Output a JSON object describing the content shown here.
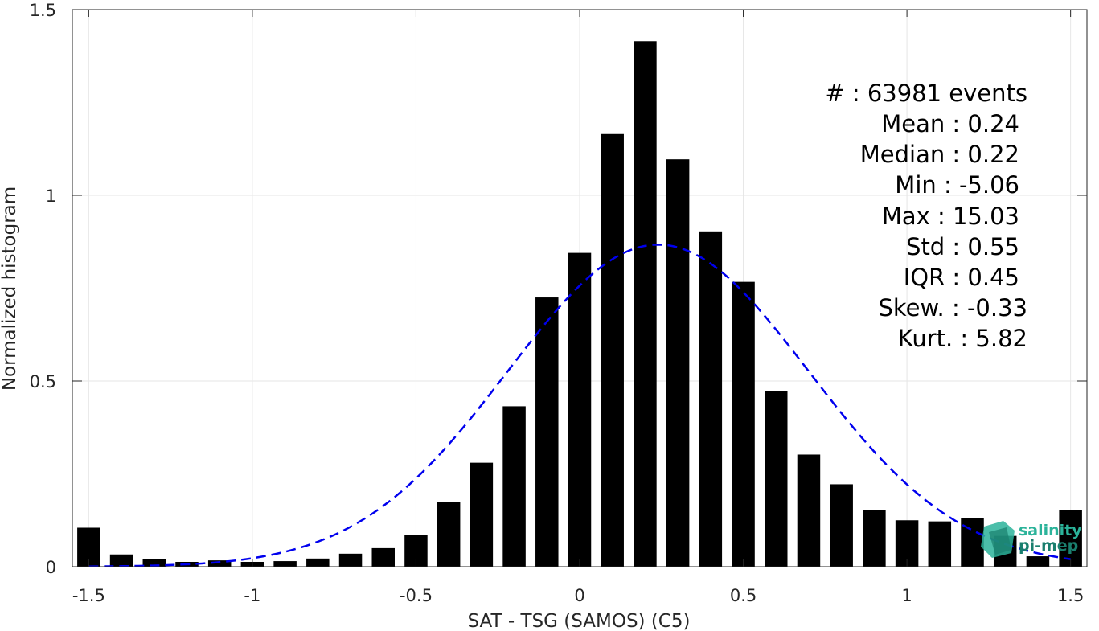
{
  "chart_data": {
    "type": "bar",
    "xlabel": "SAT - TSG (SAMOS) (C5)",
    "ylabel": "Normalized histogram",
    "xlim": [
      -1.55,
      1.55
    ],
    "ylim": [
      0,
      1.5
    ],
    "xticks": [
      -1.5,
      -1,
      -0.5,
      0,
      0.5,
      1,
      1.5
    ],
    "xtick_labels": [
      "-1.5",
      "-1",
      "-0.5",
      "0",
      "0.5",
      "1",
      "1.5"
    ],
    "yticks": [
      0,
      0.5,
      1,
      1.5
    ],
    "ytick_labels": [
      "0",
      "0.5",
      "1",
      "1.5"
    ],
    "grid": true,
    "bar_width": 0.07,
    "x": [
      -1.5,
      -1.4,
      -1.3,
      -1.2,
      -1.1,
      -1.0,
      -0.9,
      -0.8,
      -0.7,
      -0.6,
      -0.5,
      -0.4,
      -0.3,
      -0.2,
      -0.1,
      0.0,
      0.1,
      0.2,
      0.3,
      0.4,
      0.5,
      0.6,
      0.7,
      0.8,
      0.9,
      1.0,
      1.1,
      1.2,
      1.3,
      1.4,
      1.5
    ],
    "values": [
      0.105,
      0.033,
      0.02,
      0.013,
      0.017,
      0.013,
      0.015,
      0.022,
      0.035,
      0.05,
      0.085,
      0.175,
      0.28,
      0.432,
      0.725,
      0.845,
      1.165,
      1.415,
      1.097,
      0.903,
      0.767,
      0.472,
      0.302,
      0.222,
      0.153,
      0.125,
      0.122,
      0.13,
      0.083,
      0.028,
      0.153
    ],
    "bar_color": "#000000",
    "fit_curve": {
      "style": "dashed",
      "color": "#0000ee",
      "distribution": "normal",
      "mean": 0.24,
      "std": 0.46,
      "x_range": [
        -1.5,
        1.5
      ]
    },
    "stats": [
      "#  : 63981 events",
      "Mean : 0.24",
      "Median : 0.22",
      "Min : -5.06",
      "Max : 15.03",
      "Std : 0.55",
      "IQR : 0.45",
      "Skew. : -0.33",
      "Kurt. : 5.82"
    ],
    "logo": {
      "line1": "salinity",
      "line2": "pi-mep",
      "colors": [
        "#2bb39a",
        "#1a7f6e"
      ]
    }
  }
}
